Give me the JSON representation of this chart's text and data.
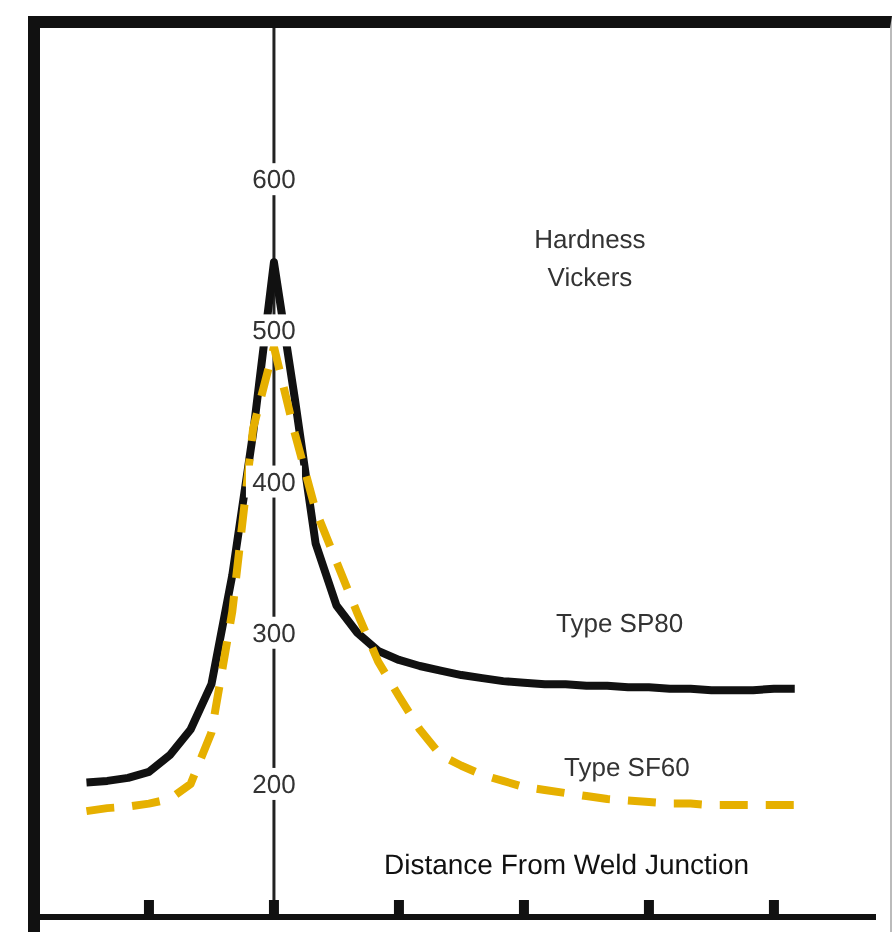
{
  "chart_data": {
    "type": "line",
    "ylabel": "Hardness Vickers",
    "xlabel": "Distance From Weld Junction",
    "categories": [
      null,
      null,
      null,
      null,
      null,
      null,
      null,
      null,
      null,
      null,
      null,
      null,
      null,
      null,
      null,
      null,
      null,
      null,
      null,
      null,
      null,
      null,
      null,
      null,
      null,
      null,
      null,
      null,
      null,
      null,
      null,
      null,
      null,
      null,
      null
    ],
    "ylim": [
      110,
      700
    ],
    "yticks": [
      200,
      300,
      400,
      500,
      600
    ],
    "tick_labels": "y",
    "grid": false,
    "legend": false,
    "marker": "none",
    "series": [
      {
        "name": "Type SP80",
        "color": "#111111",
        "line_style": "solid",
        "values": [
          201,
          202,
          204,
          208,
          219,
          236,
          266,
          338,
          432,
          545,
          455,
          359,
          318,
          300,
          288,
          282,
          278,
          275,
          272,
          270,
          268,
          267,
          266,
          266,
          265,
          265,
          264,
          264,
          263,
          263,
          262,
          262,
          262,
          263,
          263
        ]
      },
      {
        "name": "Type SF60",
        "color": "#e6b000",
        "line_style": "dashed",
        "values": [
          182,
          184,
          185,
          187,
          190,
          200,
          234,
          314,
          435,
          489,
          432,
          381,
          347,
          313,
          281,
          258,
          236,
          219,
          212,
          206,
          202,
          198,
          196,
          194,
          192,
          190,
          189,
          188,
          187,
          187,
          186,
          186,
          186,
          186,
          186
        ]
      }
    ]
  }
}
